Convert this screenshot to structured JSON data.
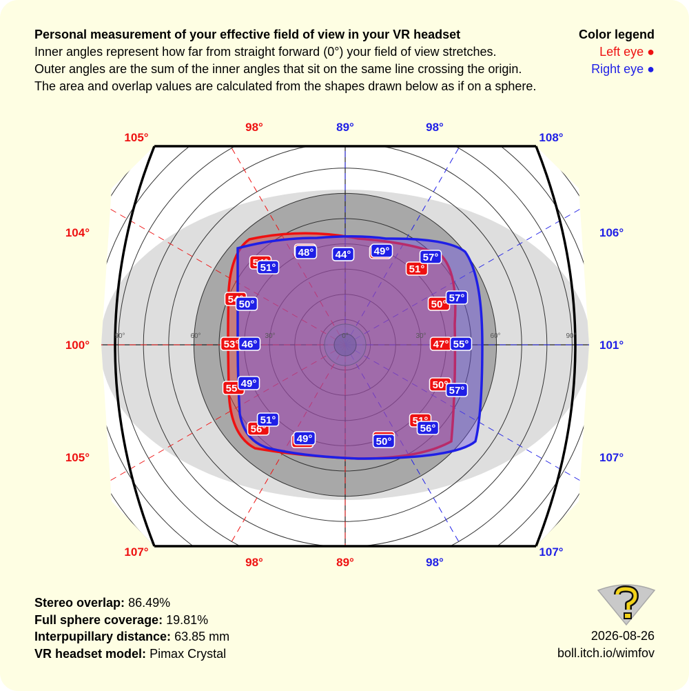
{
  "header": {
    "title": "Personal measurement of your effective field of view in your VR headset",
    "desc1": "Inner angles represent how far from straight forward (0°) your field of view stretches.",
    "desc2": "Outer angles are the sum of the inner angles that sit on the same line crossing the origin.",
    "desc3": "The area and overlap values are calculated from the shapes drawn below as if on a sphere.",
    "legend_title": "Color legend",
    "legend_left": "Left eye ●",
    "legend_right": "Right eye ●"
  },
  "stats": {
    "overlap_label": "Stereo overlap:",
    "overlap_value": "86.49%",
    "coverage_label": "Full sphere coverage:",
    "coverage_value": "19.81%",
    "ipd_label": "Interpupillary distance:",
    "ipd_value": "63.85 mm",
    "model_label": "VR headset model:",
    "model_value": "Pimax Crystal"
  },
  "footer": {
    "date": "2026-08-26",
    "url": "boll.itch.io/wimfov"
  },
  "colors": {
    "left_eye": "#ee1111",
    "right_eye": "#1f1fe6",
    "background": "#fefee3"
  },
  "chart_data": {
    "type": "polar",
    "ring_labels": [
      "0°",
      "30°",
      "60°",
      "90°"
    ],
    "angles_deg": [
      0,
      30,
      60,
      90,
      120,
      150,
      180,
      210,
      240,
      270,
      300,
      330
    ],
    "left_eye": {
      "name": "Left eye",
      "inner": [
        "47°",
        "51°",
        "49°",
        "44°",
        "48°",
        "54°",
        "53°",
        "55°",
        "56°",
        "49°",
        "49°",
        "51°"
      ],
      "inner_extra": [
        "50°",
        "50°",
        "54°"
      ]
    },
    "right_eye": {
      "name": "Right eye",
      "inner": [
        "55°",
        "57°",
        "49°",
        "44°",
        "48°",
        "51°",
        "46°",
        "49°",
        "51°",
        "49°",
        "50°",
        "56°"
      ],
      "inner_extra": [
        "57°",
        "57°",
        "50°"
      ]
    },
    "outer_labels": {
      "top": [
        "105°",
        "98°",
        "89°",
        "98°",
        "108°"
      ],
      "bottom": [
        "107°",
        "98°",
        "89°",
        "98°",
        "107°"
      ],
      "left": [
        "104°",
        "100°",
        "105°"
      ],
      "right": [
        "106°",
        "101°",
        "107°"
      ]
    }
  }
}
